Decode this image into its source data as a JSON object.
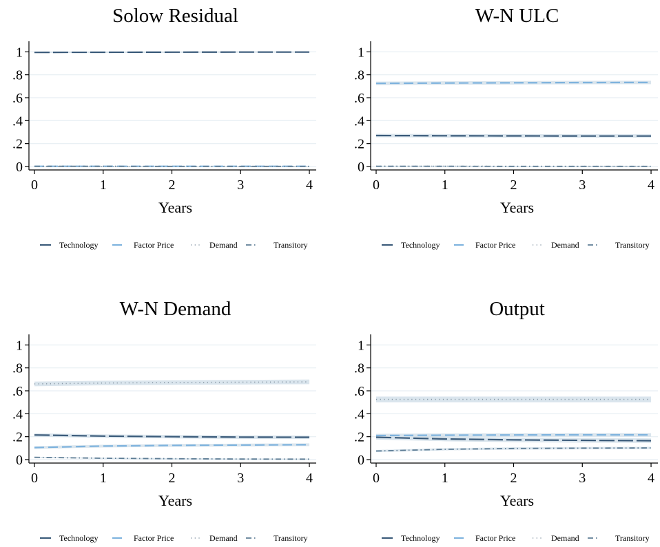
{
  "chart_data": [
    {
      "type": "line",
      "title": "Solow Residual",
      "xlabel": "Years",
      "ylabel": "",
      "x": [
        0,
        1,
        2,
        3,
        4
      ],
      "xlim": [
        -0.1,
        4.1
      ],
      "ylim": [
        -0.03,
        1.08
      ],
      "xticks": [
        "0",
        "1",
        "2",
        "3",
        "4"
      ],
      "yticks": [
        "0",
        ".2",
        ".4",
        ".6",
        ".8",
        "1"
      ],
      "grid": true,
      "legend_position": "bottom",
      "series": [
        {
          "name": "Technology",
          "values": [
            0.995,
            0.996,
            0.997,
            0.998,
            0.998
          ],
          "band": 0.006
        },
        {
          "name": "Factor Price",
          "values": [
            0.002,
            0.002,
            0.002,
            0.002,
            0.002
          ],
          "band": 0.004
        },
        {
          "name": "Demand",
          "values": [
            0.0,
            0.0,
            0.0,
            0.0,
            0.0
          ],
          "band": 0.004
        },
        {
          "name": "Transitory",
          "values": [
            0.002,
            0.002,
            0.001,
            0.001,
            0.001
          ],
          "band": 0.004
        }
      ]
    },
    {
      "type": "line",
      "title": "W-N ULC",
      "xlabel": "Years",
      "ylabel": "",
      "x": [
        0,
        1,
        2,
        3,
        4
      ],
      "xlim": [
        -0.1,
        4.1
      ],
      "ylim": [
        -0.03,
        1.08
      ],
      "xticks": [
        "0",
        "1",
        "2",
        "3",
        "4"
      ],
      "yticks": [
        "0",
        ".2",
        ".4",
        ".6",
        ".8",
        "1"
      ],
      "grid": true,
      "legend_position": "bottom",
      "series": [
        {
          "name": "Technology",
          "values": [
            0.27,
            0.268,
            0.267,
            0.266,
            0.266
          ],
          "band": 0.015
        },
        {
          "name": "Factor Price",
          "values": [
            0.725,
            0.728,
            0.73,
            0.732,
            0.733
          ],
          "band": 0.015
        },
        {
          "name": "Demand",
          "values": [
            0.003,
            0.003,
            0.002,
            0.002,
            0.002
          ],
          "band": 0.004
        },
        {
          "name": "Transitory",
          "values": [
            0.002,
            0.002,
            0.001,
            0.001,
            0.001
          ],
          "band": 0.004
        }
      ]
    },
    {
      "type": "line",
      "title": "W-N Demand",
      "xlabel": "Years",
      "ylabel": "",
      "x": [
        0,
        1,
        2,
        3,
        4
      ],
      "xlim": [
        -0.1,
        4.1
      ],
      "ylim": [
        -0.03,
        1.08
      ],
      "xticks": [
        "0",
        "1",
        "2",
        "3",
        "4"
      ],
      "yticks": [
        "0",
        ".2",
        ".4",
        ".6",
        ".8",
        "1"
      ],
      "grid": true,
      "legend_position": "bottom",
      "series": [
        {
          "name": "Technology",
          "values": [
            0.215,
            0.205,
            0.2,
            0.196,
            0.195
          ],
          "band": 0.015
        },
        {
          "name": "Factor Price",
          "values": [
            0.105,
            0.118,
            0.124,
            0.127,
            0.13
          ],
          "band": 0.012
        },
        {
          "name": "Demand",
          "values": [
            0.66,
            0.668,
            0.672,
            0.675,
            0.678
          ],
          "band": 0.02
        },
        {
          "name": "Transitory",
          "values": [
            0.02,
            0.012,
            0.008,
            0.005,
            0.004
          ],
          "band": 0.005
        }
      ]
    },
    {
      "type": "line",
      "title": "Output",
      "xlabel": "Years",
      "ylabel": "",
      "x": [
        0,
        1,
        2,
        3,
        4
      ],
      "xlim": [
        -0.1,
        4.1
      ],
      "ylim": [
        -0.03,
        1.08
      ],
      "xticks": [
        "0",
        "1",
        "2",
        "3",
        "4"
      ],
      "yticks": [
        "0",
        ".2",
        ".4",
        ".6",
        ".8",
        "1"
      ],
      "grid": true,
      "legend_position": "bottom",
      "series": [
        {
          "name": "Technology",
          "values": [
            0.195,
            0.18,
            0.172,
            0.168,
            0.165
          ],
          "band": 0.02
        },
        {
          "name": "Factor Price",
          "values": [
            0.21,
            0.213,
            0.215,
            0.216,
            0.216
          ],
          "band": 0.015
        },
        {
          "name": "Demand",
          "values": [
            0.525,
            0.525,
            0.525,
            0.525,
            0.525
          ],
          "band": 0.025
        },
        {
          "name": "Transitory",
          "values": [
            0.075,
            0.09,
            0.097,
            0.1,
            0.102
          ],
          "band": 0.01
        }
      ]
    }
  ],
  "series_styles": [
    {
      "name": "Technology",
      "color": "#3b5b7a",
      "dash": "22,5",
      "width": 2.2
    },
    {
      "name": "Factor Price",
      "color": "#7eb3de",
      "dash": "14,6",
      "width": 2.2
    },
    {
      "name": "Demand",
      "color": "#8a9aa8",
      "dash": "1.2,4.5",
      "width": 1.6
    },
    {
      "name": "Transitory",
      "color": "#5e7d95",
      "dash": "8,4,1.5,4",
      "width": 1.8
    }
  ],
  "colors": {
    "band": "#d4e1ea",
    "grid": "#e6eef3",
    "axis": "#000000",
    "background": "#ffffff"
  }
}
